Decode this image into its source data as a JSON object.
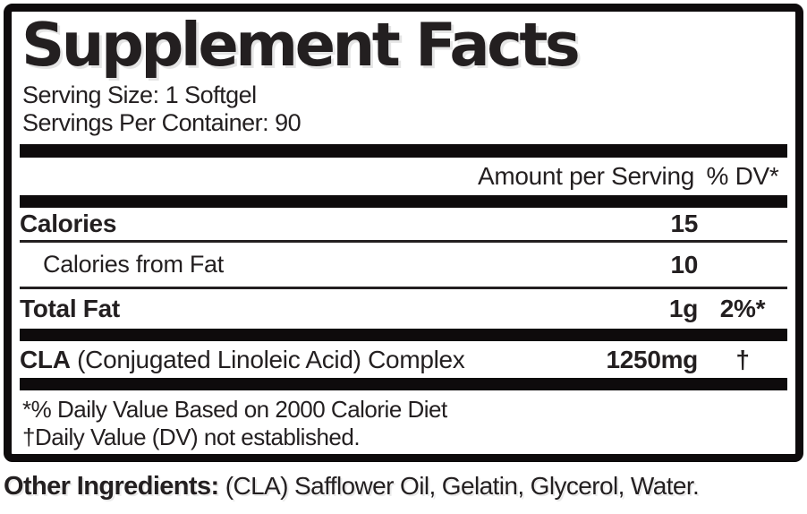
{
  "title": "Supplement Facts",
  "serving_info": {
    "serving_size": "Serving Size: 1 Softgel",
    "servings_per_container": "Servings Per Container: 90"
  },
  "table": {
    "header": {
      "amount": "Amount per Serving",
      "dv": "% DV*"
    },
    "rows": [
      {
        "name": "Calories",
        "amount": "15",
        "dv": ""
      },
      {
        "name": "Calories from Fat",
        "amount": "10",
        "dv": ""
      },
      {
        "name": "Total Fat",
        "amount": "1g",
        "dv": "2%*"
      },
      {
        "name_bold": "CLA",
        "name_rest": " (Conjugated Linoleic Acid) Complex",
        "amount": "1250mg",
        "dv": "†"
      }
    ]
  },
  "footnotes": [
    "*% Daily Value Based on 2000 Calorie Diet",
    "†Daily Value (DV) not established."
  ],
  "other_ingredients": {
    "label": "Other Ingredients:",
    "value": " (CLA) Safflower Oil, Gelatin, Glycerol, Water."
  },
  "colors": {
    "ink": "#231f20",
    "bar": "#0e0b0c",
    "background": "#ffffff"
  }
}
